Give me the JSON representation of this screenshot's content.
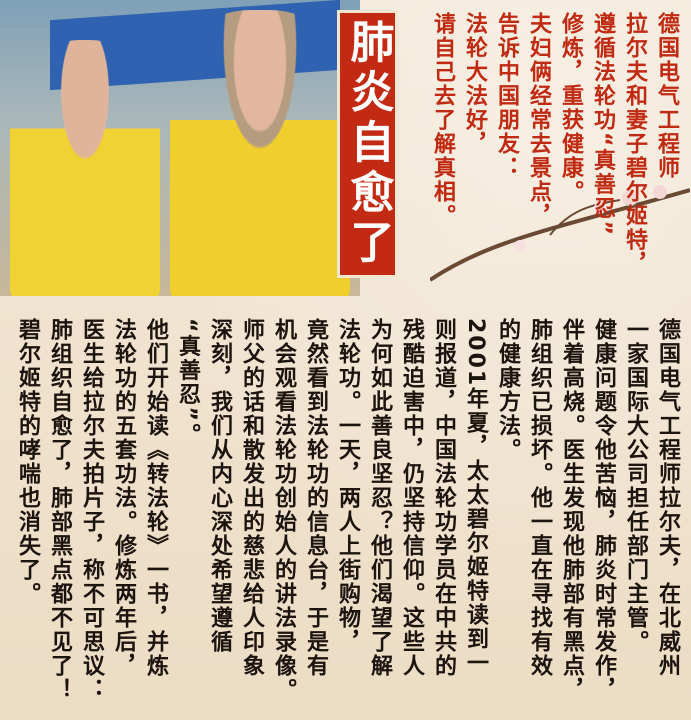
{
  "title": "肺炎自愈了",
  "top_columns": [
    "德国电气工程师",
    "拉尔夫和妻子碧尔姬特，",
    "遵循法轮功“真善忍”",
    "修炼，重获健康。",
    "夫妇俩经常去景点，",
    "告诉中国朋友：",
    "法轮大法好，",
    "请自己去了解真相。"
  ],
  "bottom_columns": [
    "德国电气工程师拉尔夫，在北威州",
    "一家国际大公司担任部门主管。",
    "健康问题令他苦恼，肺炎时常发作，",
    "伴着高烧。医生发现他肺部有黑点，",
    "肺组织已损坏。他一直在寻找有效",
    "的健康方法。",
    "2001年夏，太太碧尔姬特读到一",
    "则报道，中国法轮功学员在中共的",
    "残酷迫害中，仍坚持信仰。这些人",
    "为何如此善良坚忍？他们渴望了解",
    "法轮功。一天，两人上街购物，",
    "竟然看到法轮功的信息台，于是有",
    "机会观看法轮功创始人的讲法录像。",
    "师父的话和散发出的慈悲给人印象",
    "深刻，我们从内心深处希望遵循",
    "“真善忍”。",
    "他们开始读《转法轮》一书，并炼",
    "法轮功的五套功法。修炼两年后，",
    "医生给拉尔夫拍片子，称不可思议：",
    "肺组织自愈了，肺部黑点都不见了！",
    "碧尔姬特的哮喘也消失了。"
  ],
  "colors": {
    "title_bg": "#c32a14",
    "title_text": "#ffffff",
    "top_text": "#c02a12",
    "body_text": "#1c140e"
  }
}
